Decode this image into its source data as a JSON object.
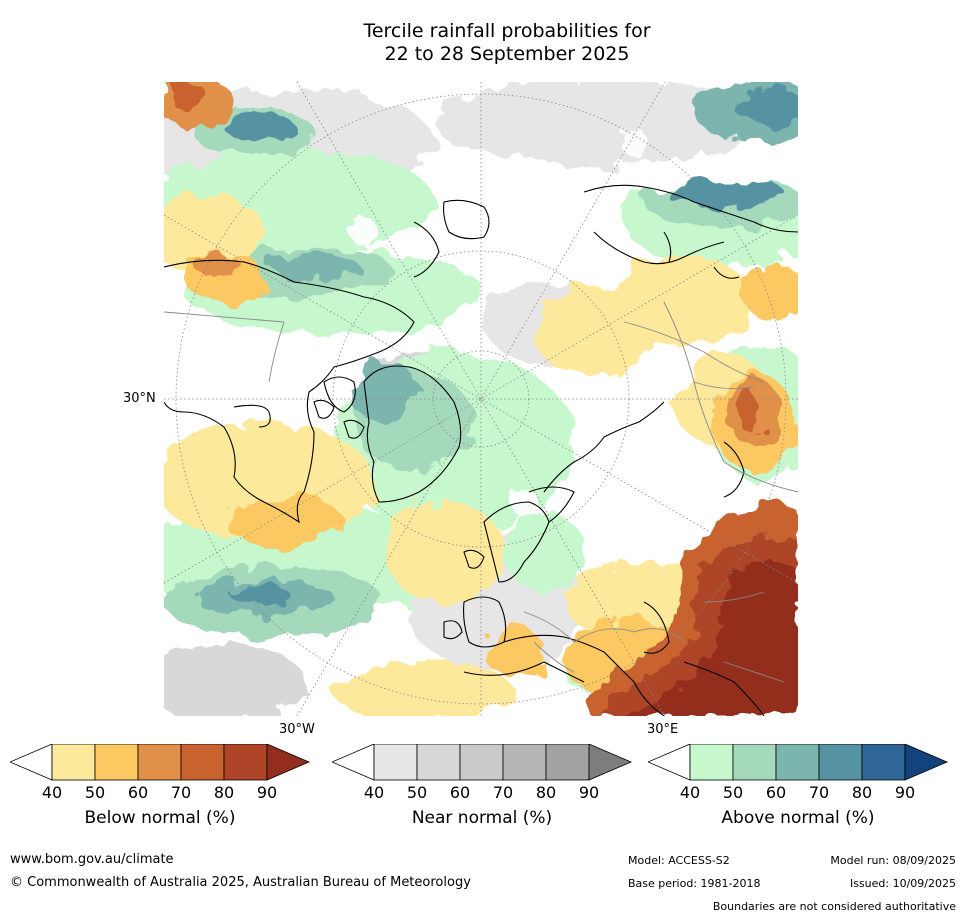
{
  "title_line1": "Tercile rainfall probabilities for",
  "title_line2": "22 to 28 September 2025",
  "map": {
    "projection": "north-polar-stereographic",
    "lat_label": "30°N",
    "lon_labels": [
      "30°W",
      "30°E"
    ]
  },
  "colorbars": [
    {
      "label": "Below normal (%)",
      "ticks": [
        "40",
        "50",
        "60",
        "70",
        "80",
        "90"
      ],
      "colors": [
        "#ffffff",
        "#fde99b",
        "#fcc862",
        "#e19049",
        "#c8622f",
        "#ad4428",
        "#932d1e"
      ]
    },
    {
      "label": "Near normal (%)",
      "ticks": [
        "40",
        "50",
        "60",
        "70",
        "80",
        "90"
      ],
      "colors": [
        "#ffffff",
        "#e6e6e6",
        "#d8d8d8",
        "#cacaca",
        "#b6b6b6",
        "#a2a2a2",
        "#7d7d7d"
      ]
    },
    {
      "label": "Above normal (%)",
      "ticks": [
        "40",
        "50",
        "60",
        "70",
        "80",
        "90"
      ],
      "colors": [
        "#ffffff",
        "#c6f7cd",
        "#a5d9bc",
        "#7bb5ae",
        "#5693a2",
        "#2f6597",
        "#13437c"
      ]
    }
  ],
  "footer": {
    "website": "www.bom.gov.au/climate",
    "copyright": "© Commonwealth of Australia 2025, Australian Bureau of Meteorology",
    "model": "Model: ACCESS-S2",
    "base_period": "Base period: 1981-2018",
    "model_run": "Model run: 08/09/2025",
    "issued": "Issued: 10/09/2025",
    "disclaimer": "Boundaries are not considered authoritative"
  }
}
